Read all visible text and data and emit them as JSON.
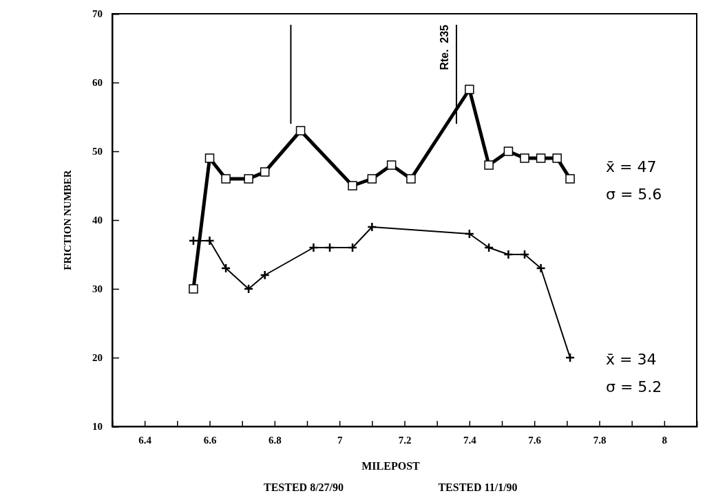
{
  "chart_data": {
    "type": "line",
    "xlabel": "MILEPOST",
    "ylabel": "FRICTION NUMBER",
    "xlim": [
      6.3,
      8.1
    ],
    "ylim": [
      10,
      70
    ],
    "xticks": [
      6.4,
      {
        "value": 6.5,
        "label": null
      },
      6.6,
      {
        "value": 6.7,
        "label": null
      },
      6.8,
      {
        "value": 6.9,
        "label": null
      },
      7,
      {
        "value": 7.1,
        "label": null
      },
      7.2,
      {
        "value": 7.3,
        "label": null
      },
      7.4,
      {
        "value": 7.5,
        "label": null
      },
      7.6,
      {
        "value": 7.7,
        "label": null
      },
      7.8,
      {
        "value": 7.9,
        "label": null
      },
      8
    ],
    "yticks": [
      10,
      20,
      30,
      40,
      50,
      60,
      70
    ],
    "grid": false,
    "series": [
      {
        "color": "#000000",
        "marker": "square",
        "x": [
          6.55,
          6.6,
          6.65,
          6.72,
          6.77,
          6.88,
          7.04,
          7.1,
          7.16,
          7.22,
          7.4,
          7.46,
          7.52,
          7.57,
          7.62,
          7.67,
          7.71
        ],
        "values": [
          30,
          49,
          46,
          46,
          47,
          53,
          45,
          46,
          48,
          46,
          59,
          48,
          50,
          49,
          49,
          49,
          46
        ]
      },
      {
        "color": "#000000",
        "marker": "cross",
        "x": [
          6.55,
          6.6,
          6.65,
          6.72,
          6.77,
          6.92,
          6.97,
          7.04,
          7.1,
          7.4,
          7.46,
          7.52,
          7.57,
          7.62,
          7.71
        ],
        "values": [
          37,
          37,
          33,
          30,
          32,
          36,
          36,
          36,
          39,
          38,
          36,
          35,
          35,
          33,
          20
        ]
      }
    ],
    "ref_lines": [
      {
        "axis": "x",
        "value": 6.85,
        "color": "#000000"
      },
      {
        "axis": "x",
        "value": 7.36,
        "label": "Rte.  235",
        "color": "#000000"
      }
    ],
    "annotations": [
      "x̄ = 47",
      "σ = 5.6",
      "x̄ = 34",
      "σ = 5.2",
      "TESTED 8/27/90",
      "TESTED 11/1/90"
    ]
  }
}
